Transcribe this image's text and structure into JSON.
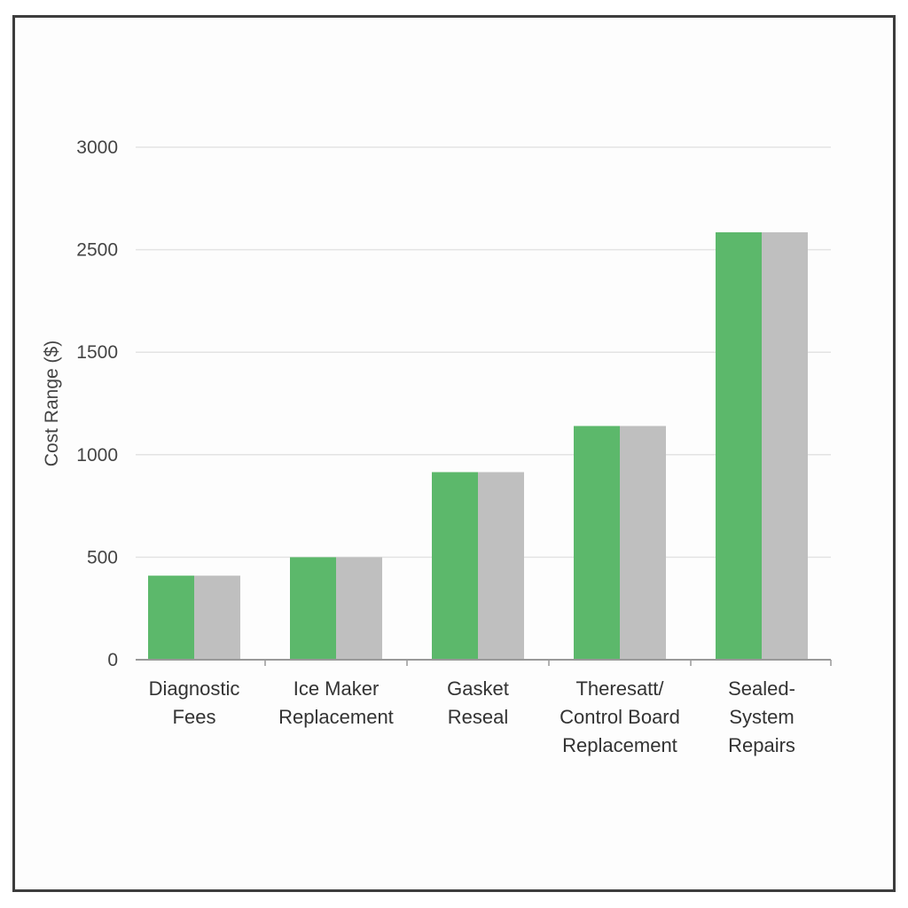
{
  "chart_data": {
    "type": "bar",
    "title": "",
    "xlabel": "",
    "ylabel": "Cost Range ($)",
    "ylim": [
      0,
      3000
    ],
    "y_ticks": [
      "0",
      "500",
      "1000",
      "1500",
      "2500",
      "3000"
    ],
    "y_tick_values": [
      0,
      500,
      1000,
      1500,
      2500,
      3000
    ],
    "grid": true,
    "legend": "none",
    "categories": [
      [
        "Diagnostic",
        "Fees"
      ],
      [
        "Ice Maker",
        "Replacement"
      ],
      [
        "Gasket",
        "Reseal"
      ],
      [
        "Theresatt/",
        "Control Board",
        "Replacement"
      ],
      [
        "Sealed-",
        "System",
        "Repairs"
      ]
    ],
    "series": [
      {
        "values": [
          410,
          500,
          915,
          1140,
          2585
        ],
        "color": "#5cb86b"
      },
      {
        "values": [
          410,
          500,
          915,
          1140,
          2585
        ],
        "color": "#bfbfbf"
      }
    ]
  }
}
